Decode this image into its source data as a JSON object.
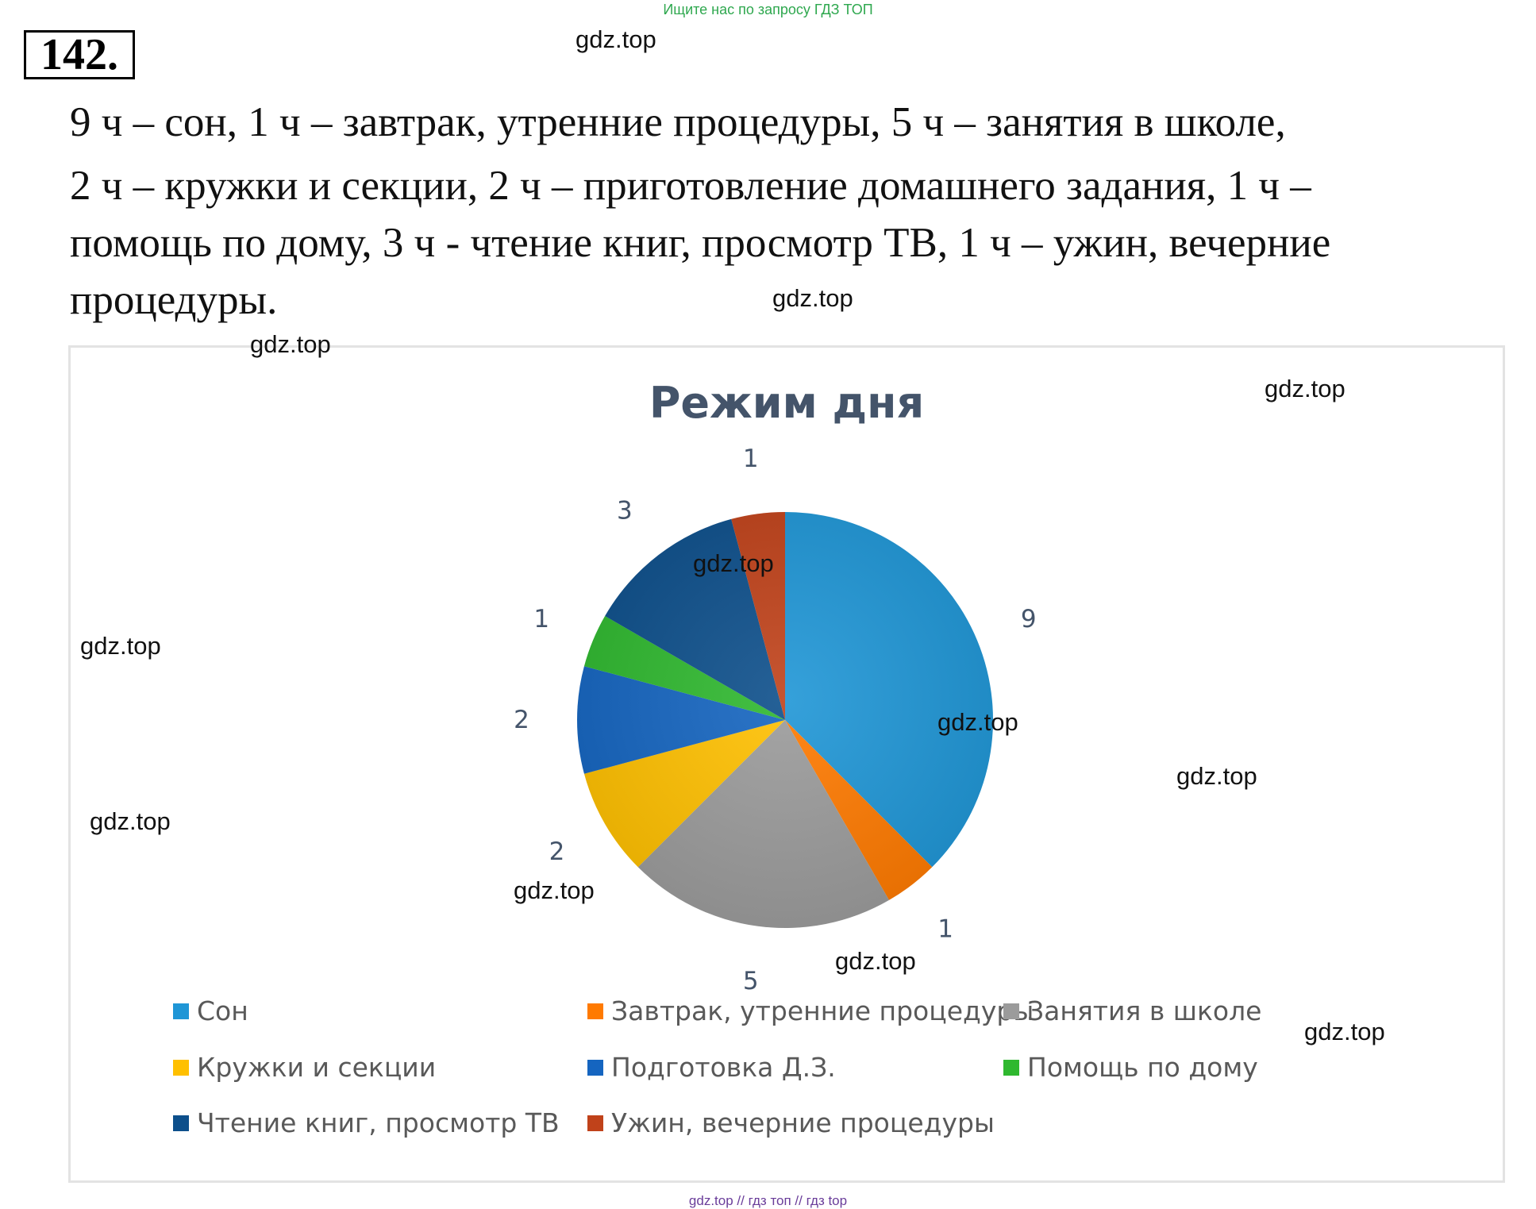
{
  "banner": "Ищите нас по запросу ГДЗ ТОП",
  "task_number": "142.",
  "task_lines": [
    "9 ч – сон, 1 ч – завтрак, утренние процедуры, 5 ч – занятия в школе,",
    " 2 ч – кружки и секции, 2 ч – приготовление домашнего задания, 1 ч –",
    "помощь по дому, 3 ч - чтение книг, просмотр ТВ, 1 ч – ужин, вечерние",
    "процедуры."
  ],
  "watermark": "gdz.top",
  "footer": "gdz.top  //  гдз топ  //  гдз top",
  "chart_data": {
    "type": "pie",
    "title": "Режим дня",
    "categories": [
      "Сон",
      "Завтрак, утренние процедуры",
      "Занятия в школе",
      "Кружки и секции",
      "Подготовка Д.З.",
      "Помощь по дому",
      "Чтение книг, просмотр ТВ",
      "Ужин, вечерние процедуры"
    ],
    "values": [
      9,
      1,
      5,
      2,
      2,
      1,
      3,
      1
    ],
    "data_labels": [
      "9",
      "1",
      "5",
      "2",
      "2",
      "1",
      "3",
      "1"
    ],
    "colors": [
      "#1f96d6",
      "#ff7a00",
      "#9b9b9b",
      "#ffc000",
      "#1565c0",
      "#2fb82f",
      "#0d4f8b",
      "#c0421a"
    ],
    "legend_position": "bottom",
    "grid": false
  }
}
